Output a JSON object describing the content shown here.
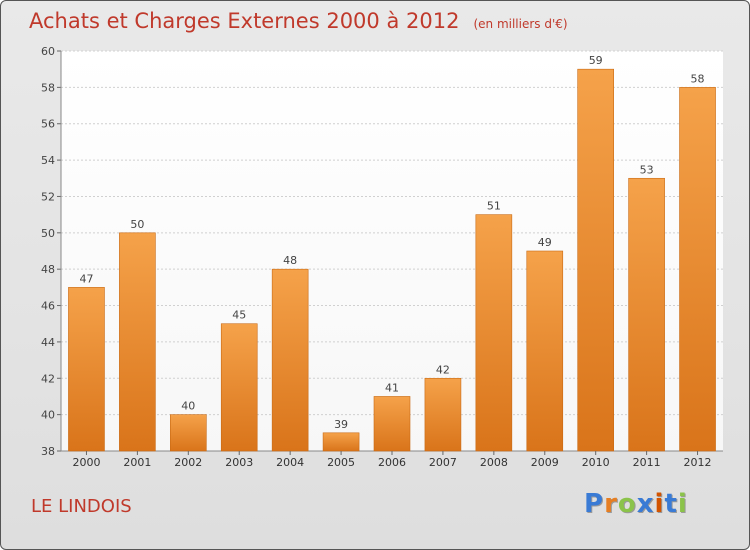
{
  "header": {
    "title": "Achats et Charges Externes 2000 à 2012",
    "subtitle": "(en milliers d'€)"
  },
  "footer": {
    "commune": "LE LINDOIS",
    "logo_text": "Proxiti",
    "logo_colors": [
      "#3a7bd5",
      "#e67e22",
      "#8bc34a",
      "#3a7bd5",
      "#d35400",
      "#3a7bd5",
      "#8bc34a"
    ]
  },
  "chart_data": {
    "type": "bar",
    "categories": [
      "2000",
      "2001",
      "2002",
      "2003",
      "2004",
      "2005",
      "2006",
      "2007",
      "2008",
      "2009",
      "2010",
      "2011",
      "2012"
    ],
    "values": [
      47,
      50,
      40,
      45,
      48,
      39,
      41,
      42,
      51,
      49,
      59,
      53,
      58
    ],
    "title": "Achats et Charges Externes 2000 à 2012",
    "subtitle": "(en milliers d'€)",
    "xlabel": "",
    "ylabel": "",
    "ylim": [
      38,
      60
    ],
    "yticks": [
      38,
      40,
      42,
      44,
      46,
      48,
      50,
      52,
      54,
      56,
      58,
      60
    ],
    "grid": true,
    "legend": "none",
    "bar_color_top": "#f5a24a",
    "bar_color_bottom": "#d9741a"
  }
}
